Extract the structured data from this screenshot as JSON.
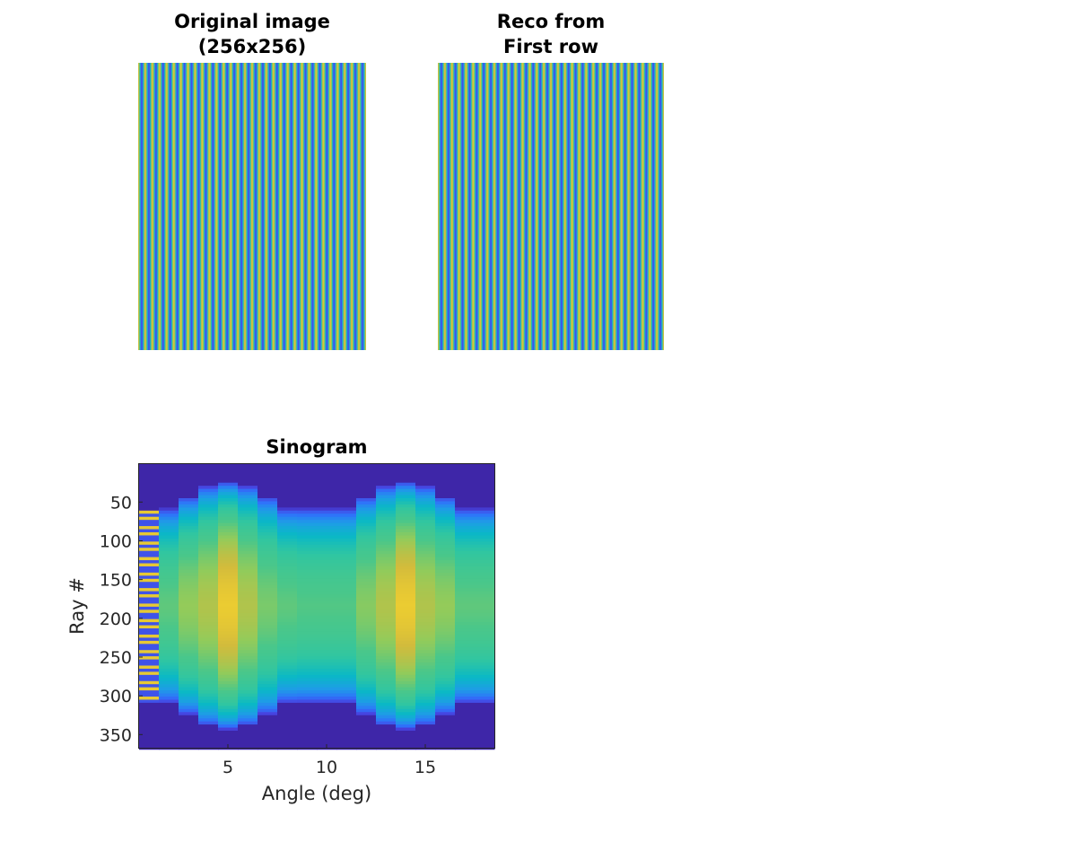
{
  "figure": {
    "panels": [
      {
        "id": "original",
        "title_line1": "Original image",
        "title_line2": "(256x256)"
      },
      {
        "id": "reco",
        "title_line1": "Reco from",
        "title_line2": "First row"
      }
    ],
    "sinogram": {
      "title": "Sinogram",
      "xlabel": "Angle (deg)",
      "ylabel": "Ray #"
    }
  },
  "colors": {
    "colormap": [
      "#3e26a8",
      "#4743e0",
      "#2f72fa",
      "#1e9de6",
      "#0ab8c6",
      "#31c6a0",
      "#4ac78a",
      "#93cb5a",
      "#d2bb3c",
      "#f9d52c"
    ],
    "stripe_blue": "#2a3cdc",
    "stripe_yellow": "#f2e21a",
    "axis": "#262626"
  },
  "chart_data": [
    {
      "type": "heatmap",
      "title": "Original image\n(256x256)",
      "description_of_pattern": "vertical sinusoidal stripes",
      "stripe_count": 32,
      "axes_visible": false
    },
    {
      "type": "heatmap",
      "title": "Reco from\nFirst row",
      "stripe_count": 32,
      "axes_visible": false
    },
    {
      "type": "heatmap",
      "title": "Sinogram",
      "xlabel": "Angle (deg)",
      "ylabel": "Ray #",
      "xlim": [
        0.5,
        18.5
      ],
      "ylim": [
        1,
        367
      ],
      "x_ticks": [
        5,
        10,
        15
      ],
      "y_ticks": [
        50,
        100,
        150,
        200,
        250,
        300,
        350
      ],
      "x": [
        1,
        2,
        3,
        4,
        5,
        6,
        7,
        8,
        9,
        10,
        11,
        12,
        13,
        14,
        15,
        16,
        17,
        18
      ],
      "ray_halfwidth": [
        125,
        126,
        141,
        155,
        160,
        155,
        141,
        126,
        126,
        126,
        126,
        141,
        155,
        160,
        155,
        141,
        126,
        126
      ],
      "center_level": [
        0.0,
        0.62,
        0.7,
        0.75,
        0.88,
        0.75,
        0.66,
        0.62,
        0.6,
        0.6,
        0.6,
        0.68,
        0.75,
        0.88,
        0.75,
        0.7,
        0.62,
        0.62
      ],
      "striped_columns": [
        1
      ]
    }
  ]
}
